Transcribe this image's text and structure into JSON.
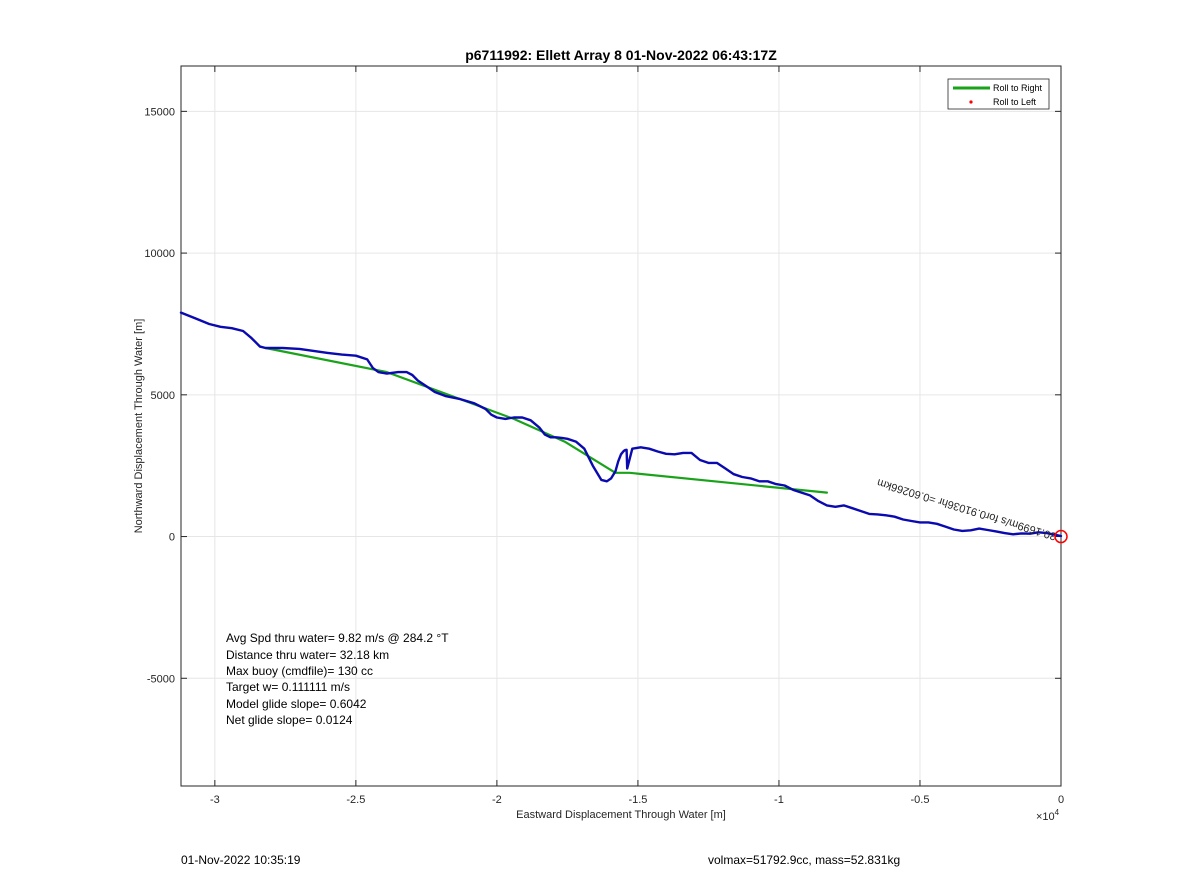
{
  "chart_data": {
    "type": "line",
    "title": "p6711992: Ellett Array 8 01-Nov-2022 06:43:17Z",
    "xlabel": "Eastward Displacement Through Water [m]",
    "ylabel": "Northward Displacement Through Water [m]",
    "x_exponent_label": "×10",
    "x_exponent_power": "4",
    "xlim": [
      -31200,
      0
    ],
    "ylim": [
      -8800,
      16600
    ],
    "x_tick_values": [
      -30000,
      -25000,
      -20000,
      -15000,
      -10000,
      -5000,
      0
    ],
    "x_tick_labels": [
      "-3",
      "-2.5",
      "-2",
      "-1.5",
      "-1",
      "-0.5",
      "0"
    ],
    "y_tick_values": [
      -5000,
      0,
      5000,
      10000,
      15000
    ],
    "y_tick_labels": [
      "-5000",
      "0",
      "5000",
      "10000",
      "15000"
    ],
    "grid": true,
    "legend_position": "top-right",
    "series": [
      {
        "name": "Roll to Right",
        "color": "#1aa31a",
        "x": [
          -28200,
          -23900,
          -19400,
          -17600,
          -15800,
          -15300,
          -8300
        ],
        "y": [
          6650,
          5800,
          4150,
          3350,
          2250,
          2250,
          1550
        ]
      },
      {
        "name": "Roll to Left",
        "color": "#ff0000",
        "x": [],
        "y": []
      }
    ],
    "track": {
      "color": "#0a0ab0",
      "x": [
        -31200,
        -30700,
        -30200,
        -29800,
        -29400,
        -29000,
        -28700,
        -28400,
        -28200,
        -27600,
        -27000,
        -26500,
        -26000,
        -25500,
        -25000,
        -24600,
        -24400,
        -24200,
        -23900,
        -23500,
        -23200,
        -23000,
        -22800,
        -22500,
        -22200,
        -21800,
        -21300,
        -20800,
        -20400,
        -20200,
        -20000,
        -19700,
        -19400,
        -19100,
        -18800,
        -18500,
        -18300,
        -18100,
        -17900,
        -17700,
        -17500,
        -17200,
        -16900,
        -16600,
        -16300,
        -16100,
        -15950,
        -15800,
        -15700,
        -15600,
        -15500,
        -15450,
        -15400,
        -15380,
        -15200,
        -14900,
        -14600,
        -14300,
        -14000,
        -13700,
        -13400,
        -13100,
        -12800,
        -12500,
        -12200,
        -11900,
        -11600,
        -11300,
        -11000,
        -10700,
        -10400,
        -10100,
        -9800,
        -9500,
        -9200,
        -8900,
        -8600,
        -8300,
        -8000,
        -7700,
        -7400,
        -7100,
        -6800,
        -6500,
        -6200,
        -5900,
        -5600,
        -5300,
        -5000,
        -4700,
        -4400,
        -4100,
        -3800,
        -3500,
        -3200,
        -2900,
        -2600,
        -2300,
        -2000,
        -1700,
        -1400,
        -1100,
        -800,
        -500,
        -300,
        -100,
        0
      ],
      "y": [
        7900,
        7700,
        7500,
        7400,
        7350,
        7250,
        7000,
        6700,
        6650,
        6650,
        6620,
        6550,
        6480,
        6420,
        6380,
        6250,
        5950,
        5800,
        5750,
        5800,
        5800,
        5700,
        5500,
        5300,
        5100,
        4950,
        4850,
        4700,
        4500,
        4300,
        4200,
        4150,
        4200,
        4200,
        4100,
        3850,
        3600,
        3500,
        3500,
        3480,
        3450,
        3350,
        3100,
        2500,
        2000,
        1950,
        2050,
        2300,
        2650,
        2900,
        3020,
        3050,
        3060,
        2400,
        3100,
        3150,
        3100,
        3000,
        2920,
        2900,
        2950,
        2950,
        2700,
        2600,
        2600,
        2400,
        2200,
        2100,
        2050,
        1950,
        1950,
        1850,
        1800,
        1650,
        1550,
        1450,
        1250,
        1100,
        1050,
        1100,
        1000,
        900,
        800,
        780,
        750,
        700,
        600,
        550,
        500,
        500,
        450,
        350,
        250,
        200,
        220,
        280,
        230,
        180,
        120,
        80,
        110,
        100,
        150,
        120,
        80,
        40,
        20
      ]
    },
    "end_marker_color": "#ff0000",
    "track_annotation": "30.1699m/s for0.91036hr =0.60266km",
    "stats_text": [
      "Avg Spd thru water=  9.82 m/s @ 284.2 °T",
      "Distance thru water= 32.18 km",
      "Max buoy (cmdfile)= 130 cc",
      "Target w= 0.111111 m/s",
      "Model glide slope= 0.6042",
      "Net glide slope= 0.0124"
    ]
  },
  "footer": {
    "left": "01-Nov-2022 10:35:19",
    "right": "volmax=51792.9cc, mass=52.831kg"
  }
}
